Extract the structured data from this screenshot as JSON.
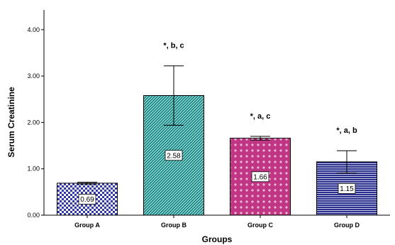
{
  "chart_data": {
    "type": "bar",
    "xlabel": "Groups",
    "ylabel": "Serum Creatinine",
    "ylim": [
      0,
      4.4
    ],
    "yticks": [
      "0.00",
      "1.00",
      "2.00",
      "3.00",
      "4.00"
    ],
    "ytick_values": [
      0,
      1,
      2,
      3,
      4
    ],
    "categories": [
      "Group A",
      "Group B",
      "Group C",
      "Group D"
    ],
    "values": [
      0.69,
      2.58,
      1.66,
      1.15
    ],
    "data_labels": [
      "0.69",
      "2.58",
      "1.66",
      "1.15"
    ],
    "error_bars": [
      {
        "low": 0.67,
        "high": 0.71
      },
      {
        "low": 1.94,
        "high": 3.22
      },
      {
        "low": 1.62,
        "high": 1.7
      },
      {
        "low": 0.91,
        "high": 1.39
      }
    ],
    "annotations": [
      "",
      "*, b, c",
      "*, a, c",
      "*, a, b"
    ],
    "bar_fill_colors": [
      "#2f3aa8",
      "#128a86",
      "#c03685",
      "#2b2f8c"
    ],
    "bar_patterns": [
      "checker",
      "diagonal",
      "crosses",
      "horizontal"
    ],
    "grid": false,
    "legend": "none"
  }
}
